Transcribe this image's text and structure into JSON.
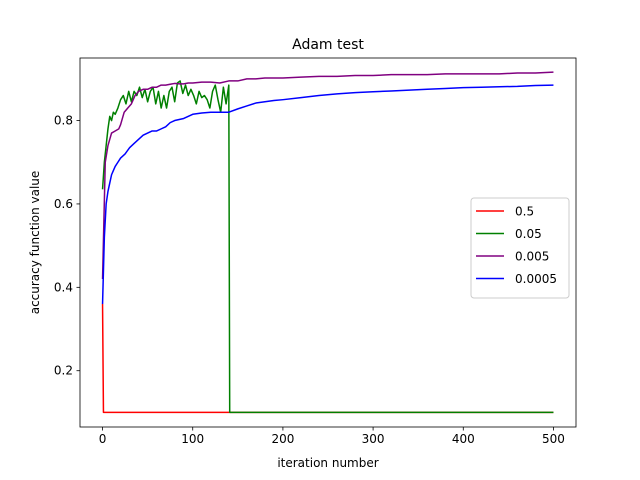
{
  "chart_data": {
    "type": "line",
    "title": "Adam test",
    "xlabel": "iteration number",
    "ylabel": "accuracy function value",
    "xlim": [
      -25,
      525
    ],
    "ylim": [
      0.065,
      0.95
    ],
    "xticks": [
      0,
      100,
      200,
      300,
      400,
      500
    ],
    "yticks": [
      0.2,
      0.4,
      0.6,
      0.8
    ],
    "grid": false,
    "legend_position": "center-right",
    "series": [
      {
        "name": "0.5",
        "color": "#ff0000",
        "points": [
          [
            0,
            0.36
          ],
          [
            1,
            0.1
          ],
          [
            500,
            0.1
          ]
        ]
      },
      {
        "name": "0.05",
        "color": "#008000",
        "points": [
          [
            0,
            0.635
          ],
          [
            2,
            0.7
          ],
          [
            4,
            0.74
          ],
          [
            6,
            0.78
          ],
          [
            8,
            0.81
          ],
          [
            10,
            0.8
          ],
          [
            12,
            0.82
          ],
          [
            14,
            0.815
          ],
          [
            17,
            0.83
          ],
          [
            20,
            0.85
          ],
          [
            23,
            0.86
          ],
          [
            26,
            0.84
          ],
          [
            29,
            0.87
          ],
          [
            32,
            0.845
          ],
          [
            35,
            0.87
          ],
          [
            38,
            0.86
          ],
          [
            41,
            0.88
          ],
          [
            44,
            0.855
          ],
          [
            47,
            0.875
          ],
          [
            50,
            0.845
          ],
          [
            53,
            0.87
          ],
          [
            56,
            0.88
          ],
          [
            59,
            0.84
          ],
          [
            62,
            0.87
          ],
          [
            65,
            0.83
          ],
          [
            68,
            0.86
          ],
          [
            71,
            0.83
          ],
          [
            74,
            0.87
          ],
          [
            77,
            0.88
          ],
          [
            80,
            0.845
          ],
          [
            83,
            0.89
          ],
          [
            86,
            0.895
          ],
          [
            89,
            0.865
          ],
          [
            92,
            0.885
          ],
          [
            95,
            0.86
          ],
          [
            98,
            0.875
          ],
          [
            101,
            0.86
          ],
          [
            104,
            0.84
          ],
          [
            107,
            0.87
          ],
          [
            110,
            0.855
          ],
          [
            113,
            0.86
          ],
          [
            116,
            0.85
          ],
          [
            119,
            0.83
          ],
          [
            122,
            0.87
          ],
          [
            125,
            0.885
          ],
          [
            128,
            0.85
          ],
          [
            131,
            0.82
          ],
          [
            134,
            0.88
          ],
          [
            137,
            0.84
          ],
          [
            140,
            0.885
          ],
          [
            141,
            0.1
          ],
          [
            500,
            0.1
          ]
        ]
      },
      {
        "name": "0.005",
        "color": "#800080",
        "points": [
          [
            0,
            0.42
          ],
          [
            3,
            0.7
          ],
          [
            6,
            0.74
          ],
          [
            10,
            0.77
          ],
          [
            14,
            0.775
          ],
          [
            18,
            0.78
          ],
          [
            20,
            0.79
          ],
          [
            24,
            0.82
          ],
          [
            28,
            0.83
          ],
          [
            32,
            0.84
          ],
          [
            36,
            0.86
          ],
          [
            40,
            0.87
          ],
          [
            45,
            0.875
          ],
          [
            50,
            0.875
          ],
          [
            55,
            0.88
          ],
          [
            60,
            0.88
          ],
          [
            65,
            0.885
          ],
          [
            70,
            0.885
          ],
          [
            75,
            0.887
          ],
          [
            80,
            0.889
          ],
          [
            85,
            0.888
          ],
          [
            90,
            0.888
          ],
          [
            95,
            0.89
          ],
          [
            100,
            0.89
          ],
          [
            110,
            0.892
          ],
          [
            120,
            0.892
          ],
          [
            130,
            0.89
          ],
          [
            140,
            0.895
          ],
          [
            150,
            0.895
          ],
          [
            160,
            0.9
          ],
          [
            170,
            0.9
          ],
          [
            180,
            0.902
          ],
          [
            190,
            0.902
          ],
          [
            200,
            0.902
          ],
          [
            220,
            0.904
          ],
          [
            240,
            0.906
          ],
          [
            260,
            0.906
          ],
          [
            280,
            0.908
          ],
          [
            300,
            0.908
          ],
          [
            320,
            0.91
          ],
          [
            340,
            0.91
          ],
          [
            360,
            0.91
          ],
          [
            380,
            0.912
          ],
          [
            400,
            0.912
          ],
          [
            420,
            0.912
          ],
          [
            440,
            0.912
          ],
          [
            460,
            0.914
          ],
          [
            480,
            0.914
          ],
          [
            500,
            0.916
          ]
        ]
      },
      {
        "name": "0.0005",
        "color": "#0000ff",
        "points": [
          [
            0,
            0.36
          ],
          [
            2,
            0.52
          ],
          [
            4,
            0.6
          ],
          [
            6,
            0.63
          ],
          [
            8,
            0.65
          ],
          [
            10,
            0.67
          ],
          [
            12,
            0.68
          ],
          [
            14,
            0.69
          ],
          [
            17,
            0.7
          ],
          [
            20,
            0.71
          ],
          [
            25,
            0.72
          ],
          [
            30,
            0.735
          ],
          [
            35,
            0.745
          ],
          [
            40,
            0.755
          ],
          [
            45,
            0.765
          ],
          [
            50,
            0.77
          ],
          [
            55,
            0.775
          ],
          [
            60,
            0.775
          ],
          [
            65,
            0.78
          ],
          [
            70,
            0.785
          ],
          [
            75,
            0.795
          ],
          [
            80,
            0.8
          ],
          [
            90,
            0.805
          ],
          [
            100,
            0.815
          ],
          [
            110,
            0.818
          ],
          [
            120,
            0.82
          ],
          [
            130,
            0.82
          ],
          [
            140,
            0.82
          ],
          [
            150,
            0.828
          ],
          [
            160,
            0.835
          ],
          [
            170,
            0.842
          ],
          [
            180,
            0.845
          ],
          [
            190,
            0.848
          ],
          [
            200,
            0.85
          ],
          [
            220,
            0.855
          ],
          [
            240,
            0.86
          ],
          [
            260,
            0.864
          ],
          [
            280,
            0.867
          ],
          [
            300,
            0.869
          ],
          [
            320,
            0.871
          ],
          [
            340,
            0.873
          ],
          [
            360,
            0.875
          ],
          [
            380,
            0.877
          ],
          [
            400,
            0.879
          ],
          [
            420,
            0.88
          ],
          [
            440,
            0.881
          ],
          [
            460,
            0.882
          ],
          [
            480,
            0.884
          ],
          [
            500,
            0.885
          ]
        ]
      }
    ]
  }
}
